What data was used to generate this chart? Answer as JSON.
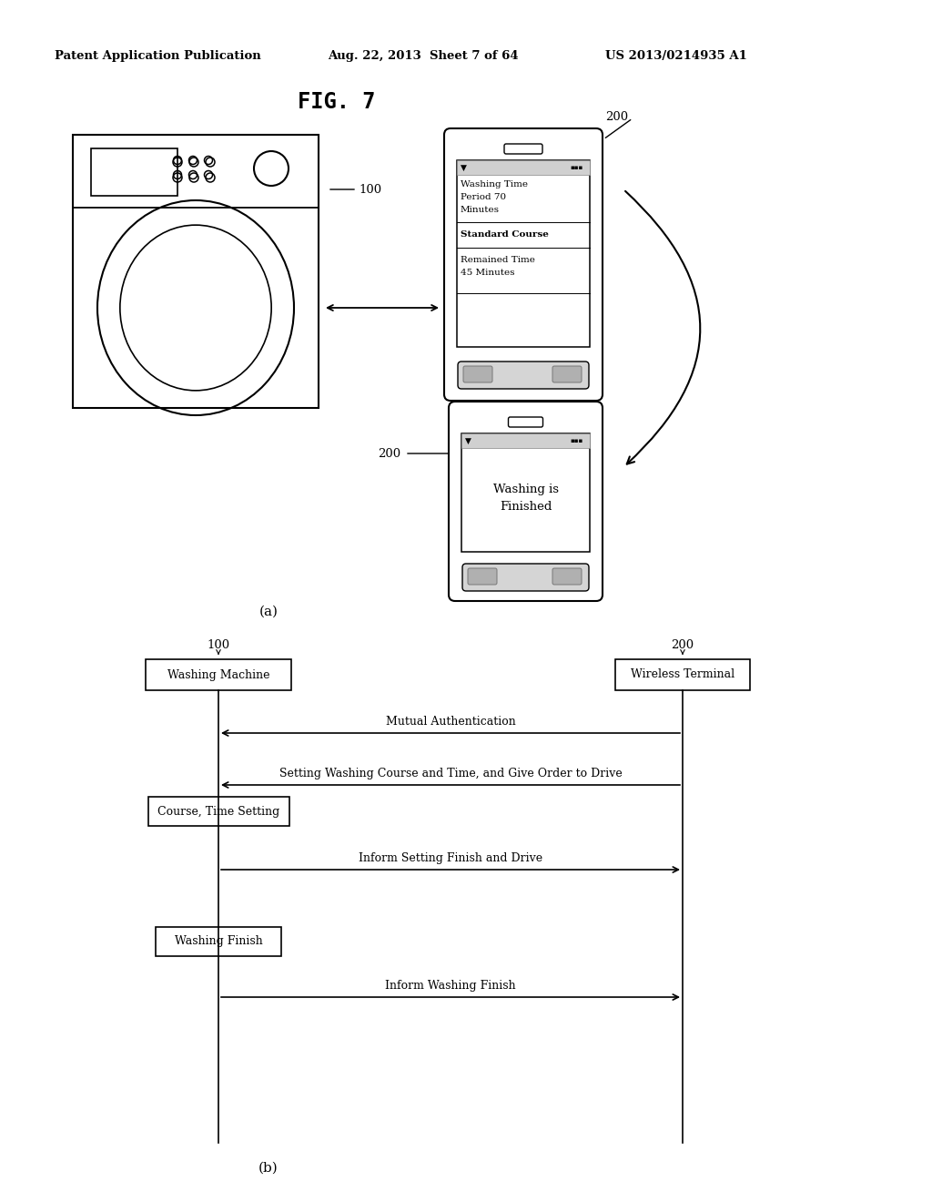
{
  "bg_color": "#ffffff",
  "header_left": "Patent Application Publication",
  "header_mid": "Aug. 22, 2013  Sheet 7 of 64",
  "header_right": "US 2013/0214935 A1",
  "fig_title": "FIG. 7",
  "label_a": "(a)",
  "label_b": "(b)",
  "wm_label": "100",
  "phone1_label": "200",
  "phone2_label": "200",
  "seq_wm_label": "100",
  "seq_wt_label": "200",
  "seq_box1": "Washing Machine",
  "seq_box2": "Wireless Terminal",
  "seq_box3": "Course, Time Setting",
  "seq_box4": "Washing Finish",
  "seq_arrow1_text": "Mutual Authentication",
  "seq_arrow2_text": "Setting Washing Course and Time, and Give Order to Drive",
  "seq_arrow3_text": "Inform Setting Finish and Drive",
  "seq_arrow4_text": "Inform Washing Finish",
  "phone1_lines": [
    "Washing Time",
    "Period 70",
    "Minutes",
    "Standard Course",
    "Remained Time",
    "45 Minutes"
  ]
}
